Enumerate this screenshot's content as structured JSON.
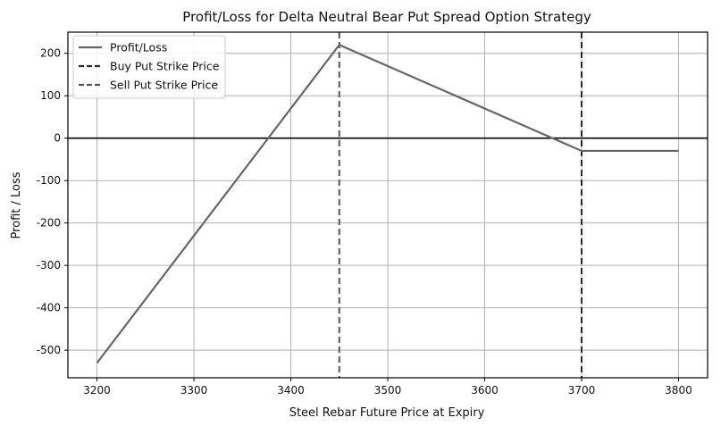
{
  "chart_data": {
    "type": "line",
    "title": "Profit/Loss for Delta Neutral Bear Put Spread Option Strategy",
    "xlabel": "Steel Rebar Future Price at Expiry",
    "ylabel": "Profit / Loss",
    "xlim": [
      3170,
      3830
    ],
    "ylim": [
      -565,
      250
    ],
    "xticks": [
      3200,
      3300,
      3400,
      3500,
      3600,
      3700,
      3800
    ],
    "yticks": [
      200,
      100,
      0,
      -100,
      -200,
      -300,
      -400,
      -500
    ],
    "grid": true,
    "legend_position": "top-left",
    "series": [
      {
        "name": "Profit/Loss",
        "style": "solid",
        "color": "#666666",
        "x": [
          3200,
          3450,
          3700,
          3800
        ],
        "y": [
          -530,
          220,
          -30,
          -30
        ]
      }
    ],
    "vlines": [
      {
        "name": "Buy Put Strike Price",
        "x": 3700,
        "style": "dashed",
        "color": "#2a2a2a"
      },
      {
        "name": "Sell Put Strike Price",
        "x": 3450,
        "style": "dashed",
        "color": "#555555"
      }
    ],
    "hline": {
      "y": 0,
      "color": "#000000"
    }
  }
}
